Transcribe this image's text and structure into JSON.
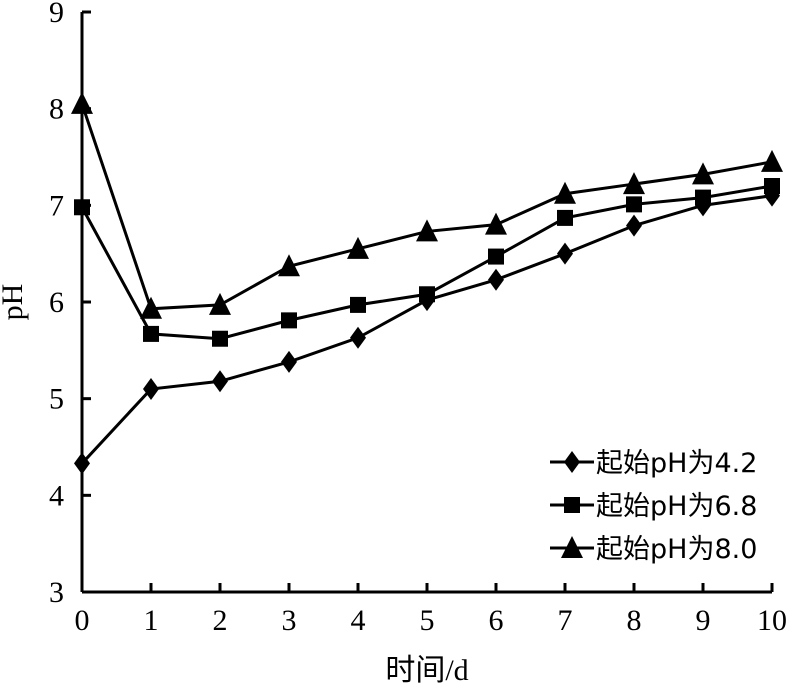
{
  "chart_data": {
    "type": "line",
    "title": "",
    "xlabel": "时间/d",
    "ylabel": "pH",
    "x": [
      0,
      1,
      2,
      3,
      4,
      5,
      6,
      7,
      8,
      9,
      10
    ],
    "xlim": [
      0,
      10
    ],
    "ylim": [
      3,
      9
    ],
    "xticks": [
      "0",
      "1",
      "2",
      "3",
      "4",
      "5",
      "6",
      "7",
      "8",
      "9",
      "10"
    ],
    "yticks": [
      "3",
      "4",
      "5",
      "6",
      "7",
      "8",
      "9"
    ],
    "grid": false,
    "legend_position": "bottom-right",
    "series": [
      {
        "name": "起始pH为4.2",
        "marker": "diamond",
        "values": [
          4.33,
          5.1,
          5.18,
          5.38,
          5.63,
          6.02,
          6.23,
          6.5,
          6.79,
          7.0,
          7.1
        ]
      },
      {
        "name": "起始pH为6.8",
        "marker": "square",
        "values": [
          6.98,
          5.67,
          5.62,
          5.81,
          5.97,
          6.08,
          6.47,
          6.87,
          7.01,
          7.08,
          7.2
        ]
      },
      {
        "name": "起始pH为8.0",
        "marker": "triangle",
        "values": [
          8.05,
          5.93,
          5.97,
          6.37,
          6.55,
          6.73,
          6.8,
          7.12,
          7.22,
          7.32,
          7.45
        ]
      }
    ],
    "color": "#000000"
  }
}
